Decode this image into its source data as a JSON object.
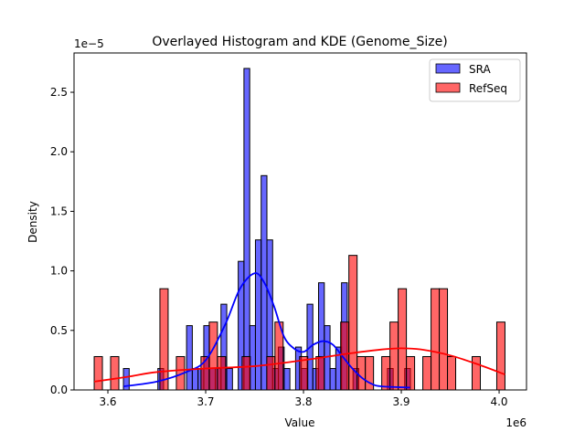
{
  "chart_data": {
    "type": "bar",
    "title": "Overlayed Histogram and KDE (Genome_Size)",
    "xlabel": "Value",
    "ylabel": "Density",
    "x_offset_label": "1e6",
    "y_offset_label": "1e−5",
    "xlim": [
      3.5654,
      4.028
    ],
    "ylim": [
      0,
      2.83
    ],
    "x_unit_scale": "1e6",
    "y_unit_scale": "1e-5",
    "xticks": [
      3.6,
      3.7,
      3.8,
      3.9,
      4.0
    ],
    "xtick_labels": [
      "3.6",
      "3.7",
      "3.8",
      "3.9",
      "4.0"
    ],
    "yticks": [
      0,
      0.5,
      1.0,
      1.5,
      2.0,
      2.5
    ],
    "ytick_labels": [
      "0.0",
      "0.5",
      "1.0",
      "1.5",
      "2.0",
      "2.5"
    ],
    "grid": false,
    "legend_position": "top-right",
    "series": [
      {
        "name": "SRA",
        "color": "#0000ff",
        "bin_start": 3.6159,
        "bin_width": 0.005868,
        "densities": [
          0.18,
          0,
          0,
          0,
          0,
          0,
          0.18,
          0,
          0,
          0,
          0,
          0.54,
          0.18,
          0.18,
          0.54,
          0.18,
          0.18,
          0.72,
          0.18,
          0,
          1.08,
          2.7,
          0.54,
          1.26,
          1.8,
          1.26,
          0.18,
          0.36,
          0.18,
          0,
          0.36,
          0.18,
          0.72,
          0.18,
          0.9,
          0.54,
          0.18,
          0.36,
          0.9,
          0,
          0.18,
          0,
          0,
          0,
          0,
          0,
          0.18,
          0,
          0,
          0.18
        ],
        "kde": [
          [
            3.616,
            0.03
          ],
          [
            3.65,
            0.07
          ],
          [
            3.68,
            0.15
          ],
          [
            3.7,
            0.25
          ],
          [
            3.72,
            0.55
          ],
          [
            3.735,
            0.85
          ],
          [
            3.75,
            0.98
          ],
          [
            3.76,
            0.9
          ],
          [
            3.77,
            0.7
          ],
          [
            3.78,
            0.45
          ],
          [
            3.79,
            0.35
          ],
          [
            3.8,
            0.32
          ],
          [
            3.81,
            0.38
          ],
          [
            3.82,
            0.41
          ],
          [
            3.83,
            0.38
          ],
          [
            3.84,
            0.28
          ],
          [
            3.85,
            0.18
          ],
          [
            3.86,
            0.1
          ],
          [
            3.87,
            0.05
          ],
          [
            3.88,
            0.03
          ],
          [
            3.909,
            0.02
          ]
        ]
      },
      {
        "name": "RefSeq",
        "color": "#ff0000",
        "bin_start": 3.586,
        "bin_width": 0.0084,
        "densities": [
          0.28,
          0,
          0.28,
          0,
          0,
          0,
          0,
          0,
          0.85,
          0,
          0.28,
          0,
          0,
          0.28,
          0.57,
          0.28,
          0,
          0,
          0.28,
          0,
          0,
          0.28,
          0.57,
          0,
          0,
          0.28,
          0,
          0.28,
          0,
          0,
          0.57,
          1.13,
          0.28,
          0.28,
          0,
          0.28,
          0.57,
          0.85,
          0.28,
          0,
          0.28,
          0.85,
          0.85,
          0.28,
          0,
          0,
          0.28,
          0,
          0,
          0.57
        ],
        "kde": [
          [
            3.586,
            0.07
          ],
          [
            3.62,
            0.11
          ],
          [
            3.65,
            0.15
          ],
          [
            3.7,
            0.18
          ],
          [
            3.75,
            0.2
          ],
          [
            3.8,
            0.25
          ],
          [
            3.85,
            0.31
          ],
          [
            3.88,
            0.34
          ],
          [
            3.9,
            0.35
          ],
          [
            3.92,
            0.34
          ],
          [
            3.95,
            0.29
          ],
          [
            3.98,
            0.21
          ],
          [
            4.006,
            0.13
          ]
        ]
      }
    ]
  }
}
